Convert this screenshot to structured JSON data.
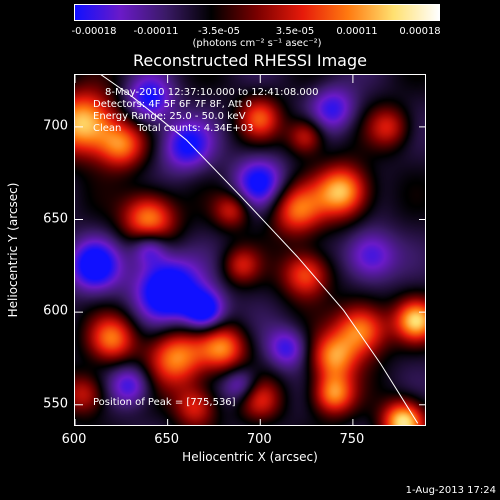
{
  "colorbar": {
    "ticks": [
      "-0.00018",
      "-0.00011",
      "-3.5e-05",
      "3.5e-05",
      "0.00011",
      "0.00018"
    ],
    "units": "(photons cm⁻² s⁻¹ asec⁻²)",
    "colors": [
      "#1010ff",
      "#6a1ac8",
      "#3a1a66",
      "#000000",
      "#7a0000",
      "#e61a0a",
      "#ff7a10",
      "#ffe070",
      "#ffffff"
    ]
  },
  "chart_data": {
    "type": "heatmap",
    "title": "Reconstructed RHESSI Image",
    "xlabel": "Heliocentric X (arcsec)",
    "ylabel": "Heliocentric Y (arcsec)",
    "xlim": [
      600,
      790
    ],
    "ylim": [
      538,
      728
    ],
    "xticks": [
      "600",
      "650",
      "700",
      "750"
    ],
    "yticks": [
      "550",
      "600",
      "650",
      "700"
    ],
    "annotations": {
      "time_range": "8-May-2010 12:37:10.000 to 12:41:08.000",
      "detectors": "Detectors: 4F 5F 6F 7F 8F, Att 0",
      "energy": "Energy Range: 25.0 - 50.0 keV",
      "clean": "Clean     Total counts: 4.34E+03",
      "peak": "Position of Peak = [775,536]"
    },
    "peak_position": [
      775,
      536
    ],
    "grid": false,
    "intensity_range": [
      -0.00018,
      0.00018
    ],
    "blobs": [
      {
        "x": 605,
        "y": 702,
        "v": 1.0,
        "s": 12
      },
      {
        "x": 640,
        "y": 650,
        "v": 0.85,
        "s": 10
      },
      {
        "x": 625,
        "y": 690,
        "v": 0.7,
        "s": 9
      },
      {
        "x": 655,
        "y": 575,
        "v": 0.8,
        "s": 11
      },
      {
        "x": 680,
        "y": 580,
        "v": 0.75,
        "s": 9
      },
      {
        "x": 620,
        "y": 585,
        "v": 0.7,
        "s": 9
      },
      {
        "x": 745,
        "y": 665,
        "v": 0.95,
        "s": 10
      },
      {
        "x": 720,
        "y": 655,
        "v": 0.7,
        "s": 10
      },
      {
        "x": 725,
        "y": 620,
        "v": 0.7,
        "s": 9
      },
      {
        "x": 755,
        "y": 590,
        "v": 0.85,
        "s": 10
      },
      {
        "x": 740,
        "y": 575,
        "v": 0.75,
        "s": 9
      },
      {
        "x": 785,
        "y": 595,
        "v": 0.9,
        "s": 8
      },
      {
        "x": 740,
        "y": 555,
        "v": 0.8,
        "s": 8
      },
      {
        "x": 778,
        "y": 540,
        "v": 1.05,
        "s": 8
      },
      {
        "x": 700,
        "y": 552,
        "v": 0.5,
        "s": 8
      },
      {
        "x": 665,
        "y": 548,
        "v": 0.55,
        "s": 8
      },
      {
        "x": 700,
        "y": 705,
        "v": 0.6,
        "s": 8
      },
      {
        "x": 725,
        "y": 695,
        "v": 0.55,
        "s": 7
      },
      {
        "x": 685,
        "y": 655,
        "v": 0.5,
        "s": 7
      },
      {
        "x": 690,
        "y": 625,
        "v": 0.45,
        "s": 7
      },
      {
        "x": 770,
        "y": 700,
        "v": 0.5,
        "s": 8
      },
      {
        "x": 605,
        "y": 555,
        "v": 0.5,
        "s": 8
      },
      {
        "x": 650,
        "y": 612,
        "v": -0.9,
        "s": 12
      },
      {
        "x": 670,
        "y": 600,
        "v": -0.8,
        "s": 8
      },
      {
        "x": 610,
        "y": 625,
        "v": -0.7,
        "s": 10
      },
      {
        "x": 660,
        "y": 690,
        "v": -0.6,
        "s": 10
      },
      {
        "x": 640,
        "y": 715,
        "v": -0.6,
        "s": 9
      },
      {
        "x": 700,
        "y": 670,
        "v": -0.6,
        "s": 10
      },
      {
        "x": 715,
        "y": 580,
        "v": -0.5,
        "s": 8
      },
      {
        "x": 690,
        "y": 560,
        "v": -0.45,
        "s": 7
      },
      {
        "x": 760,
        "y": 630,
        "v": -0.55,
        "s": 10
      },
      {
        "x": 740,
        "y": 710,
        "v": -0.5,
        "s": 9
      },
      {
        "x": 630,
        "y": 560,
        "v": -0.5,
        "s": 8
      },
      {
        "x": 640,
        "y": 635,
        "v": -0.55,
        "s": 7
      }
    ],
    "limb_line": [
      [
        600,
        738
      ],
      [
        630,
        717
      ],
      [
        660,
        693
      ],
      [
        690,
        662
      ],
      [
        720,
        630
      ],
      [
        745,
        601
      ],
      [
        765,
        572
      ],
      [
        785,
        540
      ]
    ]
  },
  "footer": "1-Aug-2013 17:24"
}
